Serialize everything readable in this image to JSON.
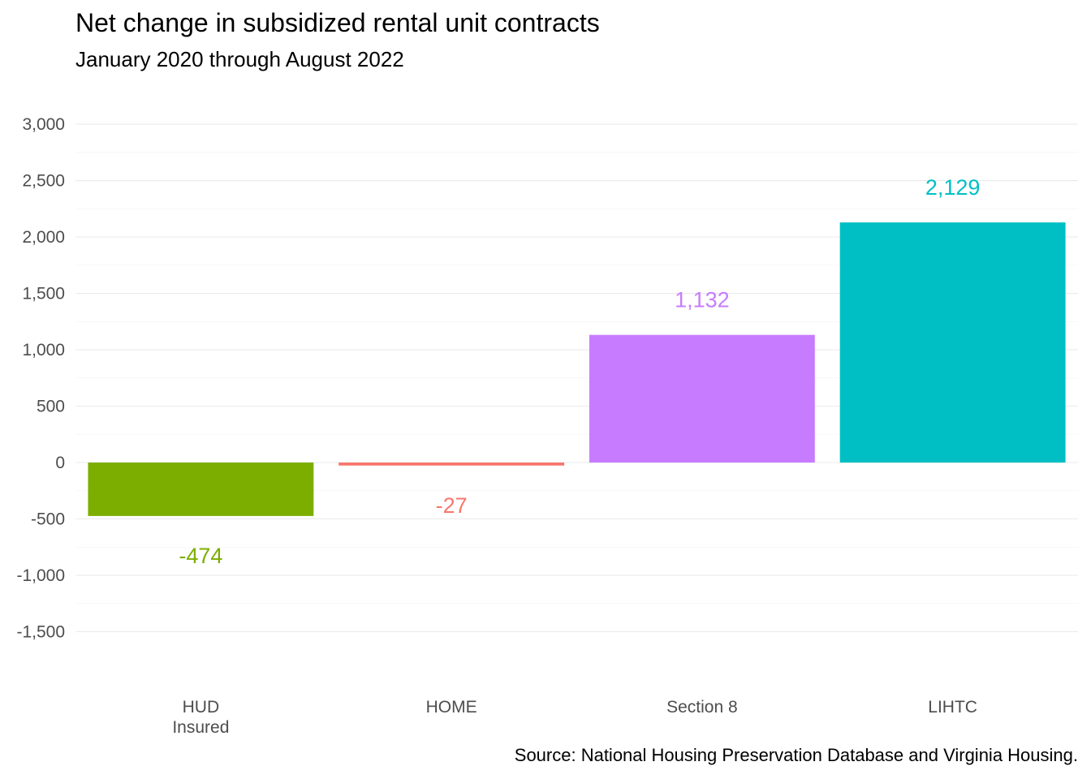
{
  "chart_data": {
    "type": "bar",
    "title": "Net change in subsidized rental unit contracts",
    "subtitle": "January 2020 through August 2022",
    "source": "Source: National Housing Preservation Database and Virginia Housing.",
    "categories": [
      "HUD\nInsured",
      "HOME",
      "Section 8",
      "LIHTC"
    ],
    "values": [
      -474,
      -27,
      1132,
      2129
    ],
    "value_labels": [
      "-474",
      "-27",
      "1,132",
      "2,129"
    ],
    "colors": [
      "#7CAE00",
      "#F8766D",
      "#C77CFF",
      "#00BFC4"
    ],
    "y_ticks": [
      -1500,
      -1000,
      -500,
      0,
      500,
      1000,
      1500,
      2000,
      2500,
      3000
    ],
    "y_tick_labels": [
      "-1,500",
      "-1,000",
      "-500",
      "0",
      "500",
      "1,000",
      "1,500",
      "2,000",
      "2,500",
      "3,000"
    ],
    "ylim": [
      -1750,
      3000
    ],
    "xlabel": "",
    "ylabel": "",
    "grid": true,
    "legend": "none"
  }
}
